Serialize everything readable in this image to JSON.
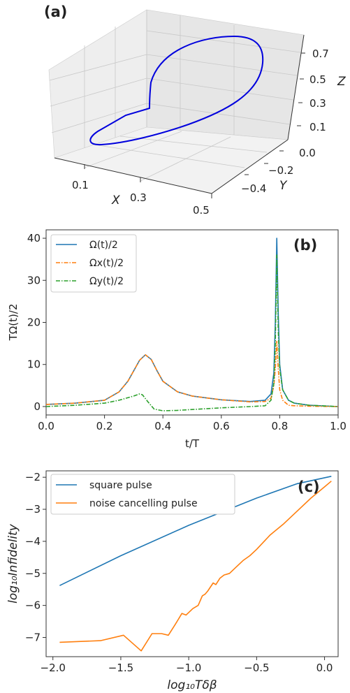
{
  "chart_data": [
    {
      "panel": "(a)",
      "type": "line3d",
      "xlabel": "X",
      "ylabel": "Y",
      "zlabel": "Z",
      "x_ticks": [
        "0.1",
        "0.3",
        "0.5"
      ],
      "y_ticks": [
        "0.0",
        "−0.2",
        "−0.4"
      ],
      "z_ticks": [
        "0.1",
        "0.3",
        "0.5",
        "0.7"
      ],
      "line_color": "#0000dd"
    },
    {
      "panel": "(b)",
      "type": "line",
      "xlabel": "t/T",
      "ylabel": "TΩ(t)/2",
      "xlim": [
        0,
        1
      ],
      "ylim": [
        -2,
        42
      ],
      "x_ticks": [
        "0.0",
        "0.2",
        "0.4",
        "0.6",
        "0.8",
        "1.0"
      ],
      "y_ticks": [
        "0",
        "10",
        "20",
        "30",
        "40"
      ],
      "legend_position": "top-left",
      "series": [
        {
          "name": "Ω(t)/2",
          "color": "#1f77b4",
          "dash": "solid",
          "x": [
            0,
            0.1,
            0.2,
            0.25,
            0.28,
            0.3,
            0.32,
            0.34,
            0.36,
            0.38,
            0.4,
            0.45,
            0.5,
            0.6,
            0.7,
            0.75,
            0.77,
            0.78,
            0.785,
            0.79,
            0.795,
            0.8,
            0.81,
            0.83,
            0.85,
            0.9,
            1.0
          ],
          "y": [
            0.5,
            0.8,
            1.5,
            3.5,
            6.0,
            8.5,
            11.0,
            12.3,
            11.2,
            8.5,
            6.0,
            3.5,
            2.5,
            1.6,
            1.2,
            1.5,
            3.0,
            8.0,
            20.0,
            40.0,
            22.0,
            10.0,
            4.0,
            1.5,
            0.8,
            0.3,
            0.0
          ]
        },
        {
          "name": "Ωx(t)/2",
          "color": "#ff7f0e",
          "dash": "dashdot",
          "x": [
            0,
            0.1,
            0.2,
            0.25,
            0.28,
            0.3,
            0.32,
            0.34,
            0.36,
            0.38,
            0.4,
            0.45,
            0.5,
            0.6,
            0.7,
            0.75,
            0.77,
            0.78,
            0.785,
            0.79,
            0.795,
            0.8,
            0.81,
            0.83,
            0.85,
            0.9,
            1.0
          ],
          "y": [
            0.5,
            0.8,
            1.5,
            3.5,
            6.0,
            8.5,
            11.0,
            12.3,
            11.2,
            8.5,
            6.0,
            3.5,
            2.5,
            1.6,
            1.1,
            1.2,
            2.0,
            5.0,
            9.0,
            15.5,
            9.0,
            4.0,
            1.5,
            0.3,
            0.2,
            0.1,
            0.0
          ]
        },
        {
          "name": "Ωy(t)/2",
          "color": "#2ca02c",
          "dash": "dashdot",
          "x": [
            0,
            0.1,
            0.2,
            0.25,
            0.3,
            0.32,
            0.33,
            0.35,
            0.37,
            0.4,
            0.45,
            0.5,
            0.6,
            0.7,
            0.75,
            0.77,
            0.78,
            0.785,
            0.79,
            0.795,
            0.8,
            0.81,
            0.83,
            0.85,
            0.9,
            1.0
          ],
          "y": [
            0.0,
            0.3,
            0.8,
            1.5,
            2.5,
            3.0,
            2.8,
            1.0,
            -0.6,
            -1.0,
            -0.9,
            -0.7,
            -0.3,
            0.0,
            0.2,
            1.5,
            5.5,
            15.0,
            36.0,
            18.0,
            9.0,
            4.0,
            1.5,
            0.8,
            0.3,
            0.0
          ]
        }
      ]
    },
    {
      "panel": "(c)",
      "type": "line",
      "xlabel": "log₁₀Tδβ",
      "ylabel": "log₁₀Infidelity",
      "xlim": [
        -2.05,
        0.1
      ],
      "ylim": [
        -7.6,
        -1.8
      ],
      "x_ticks": [
        "−2.0",
        "−1.5",
        "−1.0",
        "−0.5",
        "0.0"
      ],
      "x_tick_values": [
        -2.0,
        -1.5,
        -1.0,
        -0.5,
        0.0
      ],
      "y_ticks": [
        "−7",
        "−6",
        "−5",
        "−4",
        "−3",
        "−2"
      ],
      "y_tick_values": [
        -7,
        -6,
        -5,
        -4,
        -3,
        -2
      ],
      "legend_position": "top-left",
      "series": [
        {
          "name": "square pulse",
          "color": "#1f77b4",
          "dash": "solid",
          "x": [
            -1.95,
            -1.5,
            -1.0,
            -0.5,
            -0.2,
            0.05
          ],
          "y": [
            -5.38,
            -4.45,
            -3.5,
            -2.65,
            -2.2,
            -1.97
          ]
        },
        {
          "name": "noise cancelling pulse",
          "color": "#ff7f0e",
          "dash": "solid",
          "x": [
            -1.95,
            -1.65,
            -1.48,
            -1.35,
            -1.27,
            -1.2,
            -1.15,
            -1.1,
            -1.05,
            -1.02,
            -0.97,
            -0.93,
            -0.9,
            -0.88,
            -0.86,
            -0.82,
            -0.8,
            -0.77,
            -0.74,
            -0.7,
            -0.65,
            -0.6,
            -0.55,
            -0.5,
            -0.4,
            -0.3,
            -0.2,
            -0.1,
            0.0,
            0.05
          ],
          "y": [
            -7.15,
            -7.1,
            -6.93,
            -7.42,
            -6.88,
            -6.88,
            -6.93,
            -6.6,
            -6.25,
            -6.3,
            -6.1,
            -6.0,
            -5.7,
            -5.65,
            -5.55,
            -5.3,
            -5.35,
            -5.15,
            -5.05,
            -5.0,
            -4.8,
            -4.6,
            -4.45,
            -4.25,
            -3.8,
            -3.45,
            -3.05,
            -2.65,
            -2.3,
            -2.12
          ]
        }
      ]
    }
  ]
}
